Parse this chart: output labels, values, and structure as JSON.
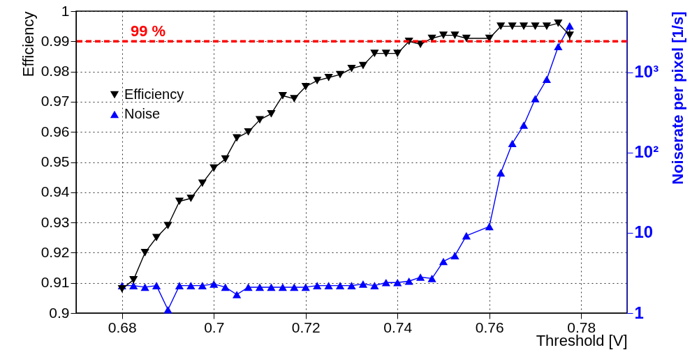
{
  "chart_data": {
    "type": "line",
    "xlabel": "Threshold [V]",
    "ylabel": "Efficiency",
    "y2label": "Noiserate per pixel [1/s]",
    "x": [
      0.68,
      0.6825,
      0.685,
      0.6875,
      0.69,
      0.6925,
      0.695,
      0.6975,
      0.7,
      0.7025,
      0.705,
      0.7075,
      0.71,
      0.7125,
      0.715,
      0.7175,
      0.72,
      0.7225,
      0.725,
      0.7275,
      0.73,
      0.7325,
      0.735,
      0.7375,
      0.74,
      0.7425,
      0.745,
      0.7475,
      0.75,
      0.7525,
      0.755,
      0.76,
      0.7625,
      0.765,
      0.7675,
      0.77,
      0.7725,
      0.775,
      0.7775
    ],
    "series": [
      {
        "name": "Efficiency",
        "color": "#000000",
        "marker": "triangle-down",
        "values": [
          0.908,
          0.911,
          0.92,
          0.925,
          0.929,
          0.937,
          0.938,
          0.943,
          0.948,
          0.951,
          0.958,
          0.96,
          0.964,
          0.966,
          0.972,
          0.971,
          0.975,
          0.977,
          0.978,
          0.979,
          0.981,
          0.982,
          0.986,
          0.986,
          0.986,
          0.99,
          0.989,
          0.991,
          0.992,
          0.992,
          0.991,
          0.991,
          0.995,
          0.995,
          0.995,
          0.995,
          0.995,
          0.996,
          0.992
        ],
        "errors": [
          0.001,
          0.001,
          0.001,
          0.001,
          0.001,
          0.001,
          0.001,
          0.001,
          0.001,
          0.001,
          0.001,
          0.001,
          0.001,
          0.001,
          0.001,
          0.001,
          0.001,
          0.001,
          0.001,
          0.001,
          0.001,
          0.001,
          0.001,
          0.001,
          0.001,
          0.001,
          0.001,
          0.001,
          0.001,
          0.001,
          0.001,
          0.001,
          0.001,
          0.001,
          0.001,
          0.001,
          0.001,
          0.001,
          0.002
        ]
      },
      {
        "name": "Noise",
        "color": "#0000ff",
        "marker": "triangle-up",
        "axis": "y2",
        "values": [
          2.2,
          2.2,
          2.1,
          2.2,
          1.1,
          2.2,
          2.2,
          2.2,
          2.3,
          2.1,
          1.7,
          2.1,
          2.1,
          2.1,
          2.1,
          2.1,
          2.1,
          2.2,
          2.2,
          2.2,
          2.2,
          2.3,
          2.2,
          2.4,
          2.4,
          2.5,
          2.8,
          2.7,
          4.4,
          5.2,
          9.2,
          12,
          56,
          130,
          220,
          470,
          820,
          2100,
          3800
        ]
      }
    ],
    "xlim": [
      0.67,
      0.79
    ],
    "xticks": [
      0.68,
      0.7,
      0.72,
      0.74,
      0.76,
      0.78
    ],
    "ylim": [
      0.9,
      1
    ],
    "yticks": [
      0.9,
      0.91,
      0.92,
      0.93,
      0.94,
      0.95,
      0.96,
      0.97,
      0.98,
      0.99,
      1
    ],
    "y2lim": [
      1,
      5800
    ],
    "y2ticks": [
      1,
      10,
      {
        "value": 100,
        "label": "10²"
      },
      {
        "value": 1000,
        "label": "10³"
      }
    ],
    "log": "y2",
    "grid": true,
    "legend": "top left",
    "ref_lines": [
      {
        "axis": "y",
        "value": 0.99,
        "label": "99 %",
        "color": "#ff0000",
        "line_style": "dashed"
      }
    ]
  }
}
